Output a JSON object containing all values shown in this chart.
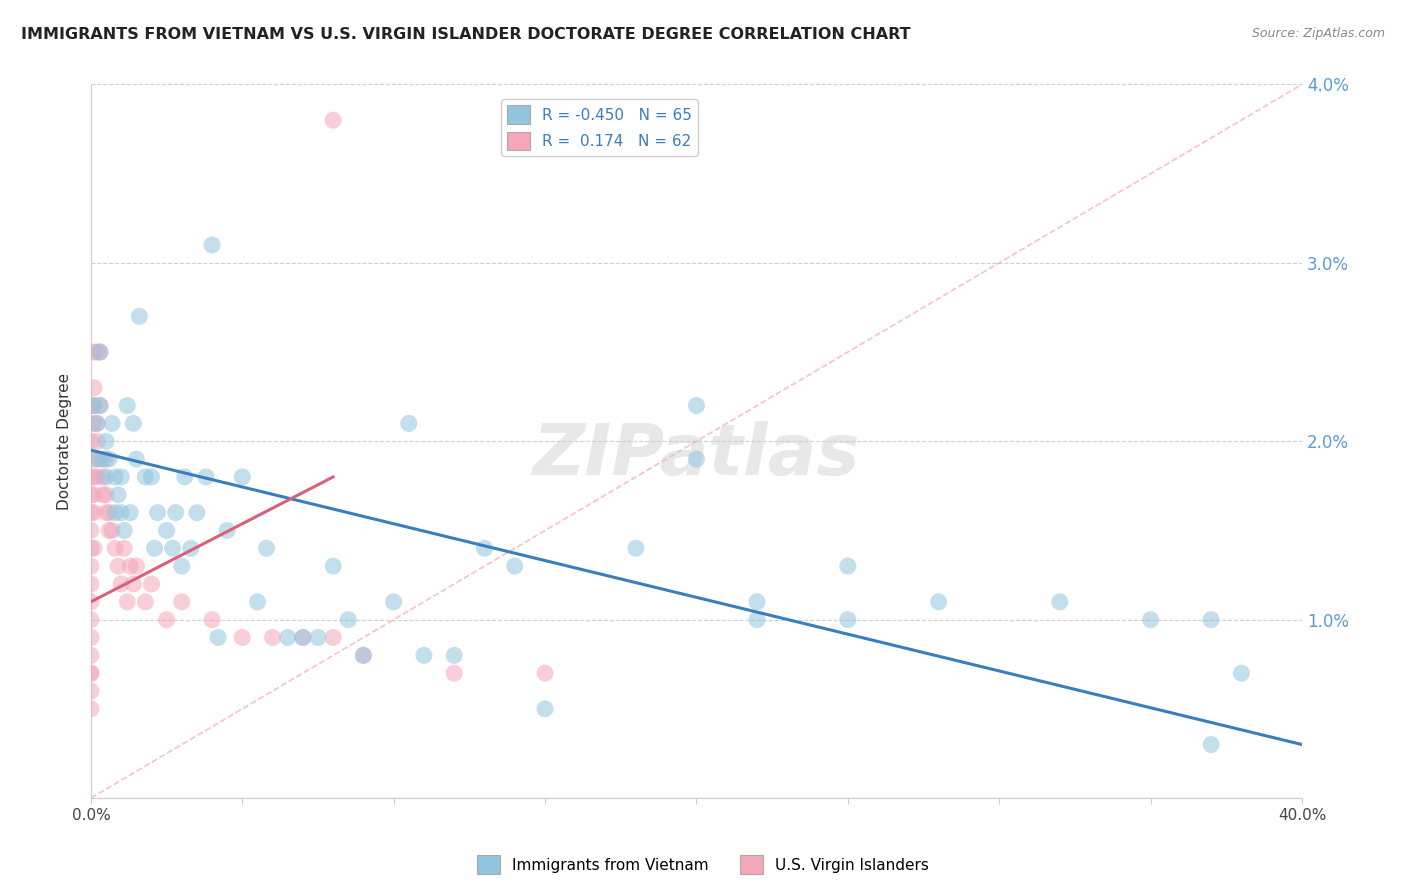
{
  "title": "IMMIGRANTS FROM VIETNAM VS U.S. VIRGIN ISLANDER DOCTORATE DEGREE CORRELATION CHART",
  "source": "Source: ZipAtlas.com",
  "ylabel": "Doctorate Degree",
  "xlim": [
    0.0,
    0.4
  ],
  "ylim": [
    0.0,
    0.04
  ],
  "xticks": [
    0.0,
    0.05,
    0.1,
    0.15,
    0.2,
    0.25,
    0.3,
    0.35,
    0.4
  ],
  "yticks": [
    0.0,
    0.01,
    0.02,
    0.03,
    0.04
  ],
  "xtick_labels_show": [
    "0.0%",
    "",
    "",
    "",
    "",
    "",
    "",
    "",
    "40.0%"
  ],
  "ytick_labels": [
    "",
    "1.0%",
    "2.0%",
    "3.0%",
    "4.0%"
  ],
  "blue_R": "-0.450",
  "blue_N": "65",
  "pink_R": "0.174",
  "pink_N": "62",
  "legend_label1": "Immigrants from Vietnam",
  "legend_label2": "U.S. Virgin Islanders",
  "blue_color": "#92c5de",
  "pink_color": "#f4a6b8",
  "blue_line_color": "#3a7ebf",
  "pink_line_color": "#d9607a",
  "diag_line_color": "#f4a6b8",
  "watermark": "ZIPatlas",
  "blue_scatter_x": [
    0.001,
    0.002,
    0.002,
    0.003,
    0.003,
    0.004,
    0.005,
    0.005,
    0.006,
    0.007,
    0.008,
    0.008,
    0.009,
    0.01,
    0.01,
    0.011,
    0.012,
    0.013,
    0.014,
    0.015,
    0.016,
    0.018,
    0.02,
    0.021,
    0.022,
    0.025,
    0.027,
    0.028,
    0.03,
    0.031,
    0.033,
    0.035,
    0.038,
    0.04,
    0.042,
    0.045,
    0.05,
    0.055,
    0.058,
    0.065,
    0.07,
    0.075,
    0.08,
    0.085,
    0.09,
    0.1,
    0.105,
    0.11,
    0.12,
    0.13,
    0.14,
    0.15,
    0.18,
    0.2,
    0.22,
    0.25,
    0.28,
    0.32,
    0.37,
    0.2,
    0.22,
    0.25,
    0.35,
    0.37,
    0.38
  ],
  "blue_scatter_y": [
    0.022,
    0.019,
    0.021,
    0.025,
    0.022,
    0.019,
    0.02,
    0.018,
    0.019,
    0.021,
    0.016,
    0.018,
    0.017,
    0.018,
    0.016,
    0.015,
    0.022,
    0.016,
    0.021,
    0.019,
    0.027,
    0.018,
    0.018,
    0.014,
    0.016,
    0.015,
    0.014,
    0.016,
    0.013,
    0.018,
    0.014,
    0.016,
    0.018,
    0.031,
    0.009,
    0.015,
    0.018,
    0.011,
    0.014,
    0.009,
    0.009,
    0.009,
    0.013,
    0.01,
    0.008,
    0.011,
    0.021,
    0.008,
    0.008,
    0.014,
    0.013,
    0.005,
    0.014,
    0.022,
    0.011,
    0.013,
    0.011,
    0.011,
    0.003,
    0.019,
    0.01,
    0.01,
    0.01,
    0.01,
    0.007
  ],
  "pink_scatter_x": [
    0.0,
    0.0,
    0.0,
    0.0,
    0.0,
    0.0,
    0.0,
    0.0,
    0.0,
    0.0,
    0.0,
    0.0,
    0.0,
    0.0,
    0.0,
    0.0,
    0.0,
    0.001,
    0.001,
    0.001,
    0.001,
    0.001,
    0.001,
    0.001,
    0.001,
    0.001,
    0.002,
    0.002,
    0.002,
    0.002,
    0.003,
    0.003,
    0.003,
    0.004,
    0.004,
    0.005,
    0.005,
    0.005,
    0.006,
    0.006,
    0.007,
    0.008,
    0.009,
    0.01,
    0.011,
    0.012,
    0.013,
    0.014,
    0.015,
    0.018,
    0.02,
    0.025,
    0.03,
    0.04,
    0.05,
    0.06,
    0.07,
    0.08,
    0.09,
    0.12,
    0.15,
    0.08
  ],
  "pink_scatter_y": [
    0.005,
    0.006,
    0.007,
    0.007,
    0.008,
    0.009,
    0.01,
    0.011,
    0.012,
    0.013,
    0.014,
    0.015,
    0.016,
    0.017,
    0.018,
    0.02,
    0.022,
    0.014,
    0.016,
    0.017,
    0.018,
    0.019,
    0.021,
    0.022,
    0.023,
    0.025,
    0.018,
    0.02,
    0.021,
    0.025,
    0.019,
    0.022,
    0.025,
    0.017,
    0.018,
    0.016,
    0.017,
    0.019,
    0.015,
    0.016,
    0.015,
    0.014,
    0.013,
    0.012,
    0.014,
    0.011,
    0.013,
    0.012,
    0.013,
    0.011,
    0.012,
    0.01,
    0.011,
    0.01,
    0.009,
    0.009,
    0.009,
    0.009,
    0.008,
    0.007,
    0.007,
    0.038
  ],
  "blue_trend_x": [
    0.0,
    0.4
  ],
  "blue_trend_y": [
    0.0195,
    0.003
  ],
  "pink_trend_x": [
    0.0,
    0.08
  ],
  "pink_trend_y": [
    0.011,
    0.018
  ],
  "diag_line_x": [
    0.0,
    0.4
  ],
  "diag_line_y": [
    0.0,
    0.04
  ]
}
